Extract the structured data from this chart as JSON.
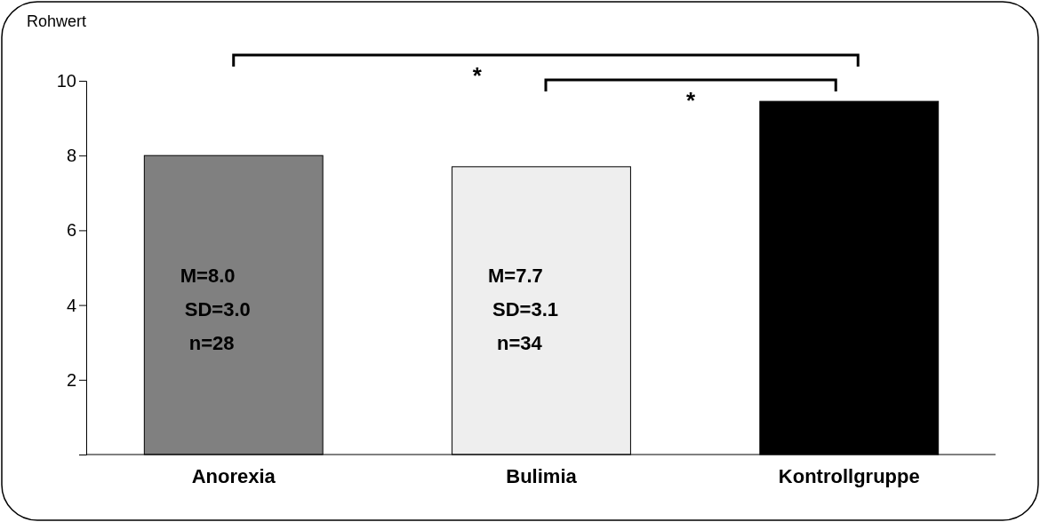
{
  "chart_data": {
    "type": "bar",
    "ylabel": "Rohwert",
    "categories": [
      "Anorexia",
      "Bulimia",
      "Kontrollgruppe"
    ],
    "values": [
      8.0,
      7.7,
      9.45
    ],
    "colors": [
      "#808080",
      "#eeeeee",
      "#000000"
    ],
    "ylim": [
      0,
      10
    ],
    "yticks": [
      2,
      4,
      6,
      8,
      10
    ],
    "grid": false,
    "annotations": [
      "*",
      "*",
      "M=8.0",
      "SD=3.0",
      "n=28",
      "M=7.7",
      "SD=3.1",
      "n=34"
    ]
  }
}
